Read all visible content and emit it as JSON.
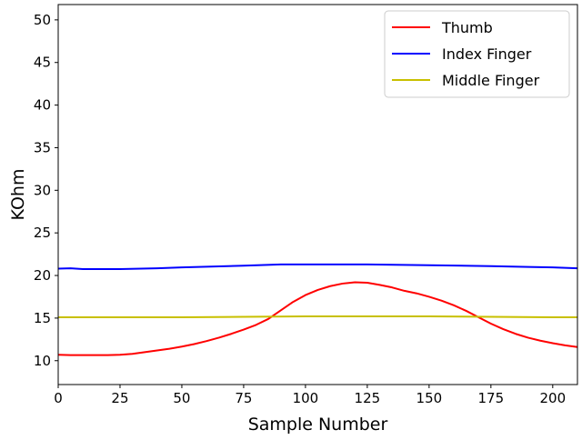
{
  "chart_data": {
    "type": "line",
    "title": "",
    "xlabel": "Sample Number",
    "ylabel": "KOhm",
    "xlim": [
      0,
      210
    ],
    "ylim": [
      7.2,
      51.8
    ],
    "xticks": [
      0,
      25,
      50,
      75,
      100,
      125,
      150,
      175,
      200
    ],
    "yticks": [
      10,
      15,
      20,
      25,
      30,
      35,
      40,
      45,
      50
    ],
    "grid": false,
    "legend_position": "top-right",
    "series": [
      {
        "name": "Thumb",
        "color": "#ff0000",
        "points": [
          [
            0,
            10.7
          ],
          [
            5,
            10.65
          ],
          [
            10,
            10.65
          ],
          [
            15,
            10.65
          ],
          [
            20,
            10.65
          ],
          [
            25,
            10.7
          ],
          [
            30,
            10.8
          ],
          [
            35,
            11.0
          ],
          [
            40,
            11.2
          ],
          [
            45,
            11.4
          ],
          [
            50,
            11.65
          ],
          [
            55,
            11.95
          ],
          [
            60,
            12.3
          ],
          [
            65,
            12.7
          ],
          [
            70,
            13.15
          ],
          [
            75,
            13.65
          ],
          [
            80,
            14.2
          ],
          [
            85,
            14.9
          ],
          [
            90,
            15.9
          ],
          [
            95,
            16.9
          ],
          [
            100,
            17.7
          ],
          [
            105,
            18.3
          ],
          [
            110,
            18.75
          ],
          [
            115,
            19.05
          ],
          [
            120,
            19.2
          ],
          [
            125,
            19.15
          ],
          [
            130,
            18.9
          ],
          [
            135,
            18.6
          ],
          [
            140,
            18.2
          ],
          [
            145,
            17.9
          ],
          [
            150,
            17.5
          ],
          [
            155,
            17.05
          ],
          [
            160,
            16.5
          ],
          [
            165,
            15.85
          ],
          [
            170,
            15.1
          ],
          [
            175,
            14.35
          ],
          [
            180,
            13.7
          ],
          [
            185,
            13.15
          ],
          [
            190,
            12.7
          ],
          [
            195,
            12.35
          ],
          [
            200,
            12.05
          ],
          [
            205,
            11.8
          ],
          [
            210,
            11.6
          ]
        ]
      },
      {
        "name": "Index Finger",
        "color": "#0000ff",
        "points": [
          [
            0,
            20.8
          ],
          [
            5,
            20.85
          ],
          [
            10,
            20.75
          ],
          [
            25,
            20.75
          ],
          [
            40,
            20.85
          ],
          [
            50,
            20.95
          ],
          [
            75,
            21.15
          ],
          [
            90,
            21.3
          ],
          [
            100,
            21.3
          ],
          [
            125,
            21.3
          ],
          [
            150,
            21.2
          ],
          [
            175,
            21.1
          ],
          [
            190,
            21.0
          ],
          [
            200,
            20.95
          ],
          [
            210,
            20.85
          ]
        ]
      },
      {
        "name": "Middle Finger",
        "color": "#c8c000",
        "points": [
          [
            0,
            15.1
          ],
          [
            25,
            15.1
          ],
          [
            50,
            15.1
          ],
          [
            75,
            15.15
          ],
          [
            100,
            15.2
          ],
          [
            125,
            15.2
          ],
          [
            150,
            15.2
          ],
          [
            175,
            15.15
          ],
          [
            200,
            15.1
          ],
          [
            210,
            15.1
          ]
        ]
      }
    ]
  }
}
